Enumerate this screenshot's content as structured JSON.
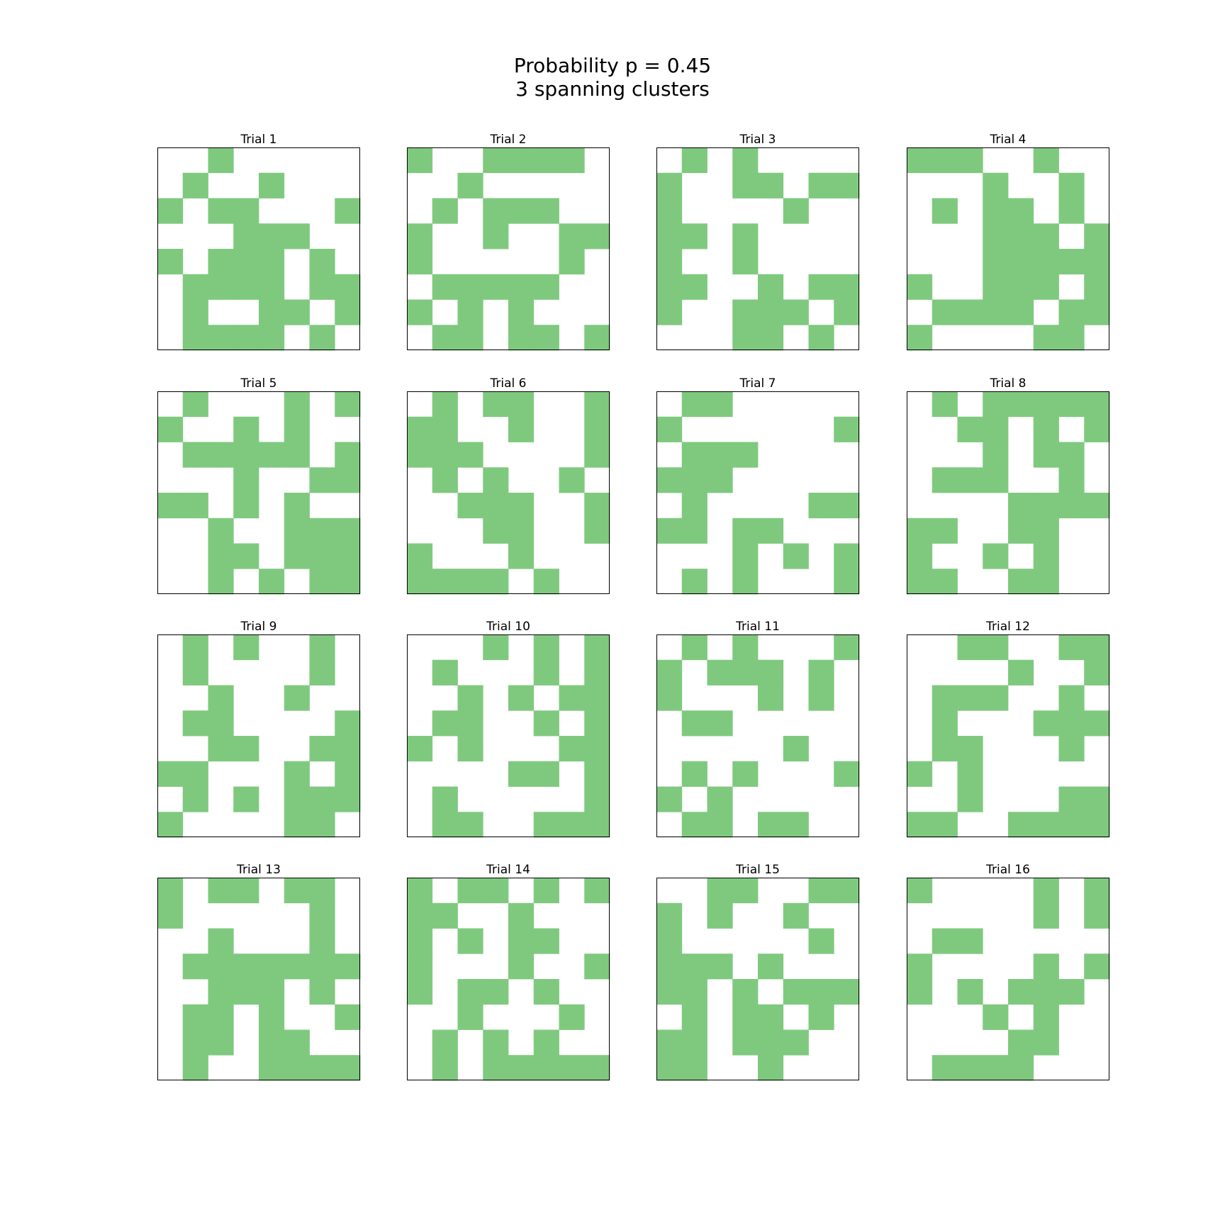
{
  "figure": {
    "title_line1": "Probability p = 0.45",
    "title_line2": "3 spanning clusters"
  },
  "colors": {
    "occupied": "#7fc97f",
    "empty": "#ffffff",
    "frame": "#000000"
  },
  "chart_data": {
    "type": "heatmap",
    "title": "Probability p = 0.45\n3 spanning clusters",
    "probability": 0.45,
    "spanning_clusters": 3,
    "grid_size": 8,
    "panels": [
      {
        "title": "Trial 1",
        "grid": [
          "00100000",
          "01001000",
          "10110001",
          "00011100",
          "10111010",
          "01111011",
          "01001101",
          "01111010"
        ]
      },
      {
        "title": "Trial 2",
        "grid": [
          "10011110",
          "00100000",
          "01011100",
          "10010011",
          "10000010",
          "01111100",
          "10101000",
          "01101101"
        ]
      },
      {
        "title": "Trial 3",
        "grid": [
          "01010000",
          "10011011",
          "10000100",
          "11010000",
          "10010000",
          "11001011",
          "10011101",
          "00011010"
        ]
      },
      {
        "title": "Trial 4",
        "grid": [
          "11100100",
          "00010010",
          "01011010",
          "00011101",
          "00011111",
          "10011101",
          "01111011",
          "10000110"
        ]
      },
      {
        "title": "Trial 5",
        "grid": [
          "01000101",
          "10010100",
          "01111101",
          "00010011",
          "11010100",
          "00100111",
          "00110111",
          "00101011"
        ]
      },
      {
        "title": "Trial 6",
        "grid": [
          "01011001",
          "11001001",
          "11100001",
          "01010010",
          "00111001",
          "00011001",
          "10001000",
          "11110100"
        ]
      },
      {
        "title": "Trial 7",
        "grid": [
          "01100000",
          "10000001",
          "01110000",
          "11100000",
          "01000011",
          "11011000",
          "00010101",
          "01010001"
        ]
      },
      {
        "title": "Trial 8",
        "grid": [
          "01011111",
          "00110101",
          "00010110",
          "01110010",
          "00001111",
          "11001100",
          "10010100",
          "11001100"
        ]
      },
      {
        "title": "Trial 9",
        "grid": [
          "01010010",
          "01000010",
          "00100100",
          "01100001",
          "00110011",
          "11000101",
          "01010111",
          "10000110"
        ]
      },
      {
        "title": "Trial 10",
        "grid": [
          "00010101",
          "01000101",
          "00101011",
          "01100101",
          "10100011",
          "00001101",
          "01000001",
          "01100111"
        ]
      },
      {
        "title": "Trial 11",
        "grid": [
          "01010001",
          "10111010",
          "10001010",
          "01100000",
          "00000100",
          "01010001",
          "10100000",
          "01101100"
        ]
      },
      {
        "title": "Trial 12",
        "grid": [
          "00110011",
          "00001001",
          "01110010",
          "01000111",
          "01100010",
          "10100000",
          "00100011",
          "11001111"
        ]
      },
      {
        "title": "Trial 13",
        "grid": [
          "10110110",
          "10000010",
          "00100010",
          "01111111",
          "00111010",
          "01101001",
          "01101100",
          "01001111"
        ]
      },
      {
        "title": "Trial 14",
        "grid": [
          "10110101",
          "11001000",
          "10101100",
          "10001001",
          "10110100",
          "00100010",
          "01010100",
          "01011111"
        ]
      },
      {
        "title": "Trial 15",
        "grid": [
          "00110011",
          "10100100",
          "10000010",
          "11101000",
          "11010111",
          "01011010",
          "11011100",
          "11001000"
        ]
      },
      {
        "title": "Trial 16",
        "grid": [
          "10000101",
          "00000101",
          "01100000",
          "10000101",
          "10101110",
          "00010100",
          "00001100",
          "01111000"
        ]
      }
    ]
  }
}
